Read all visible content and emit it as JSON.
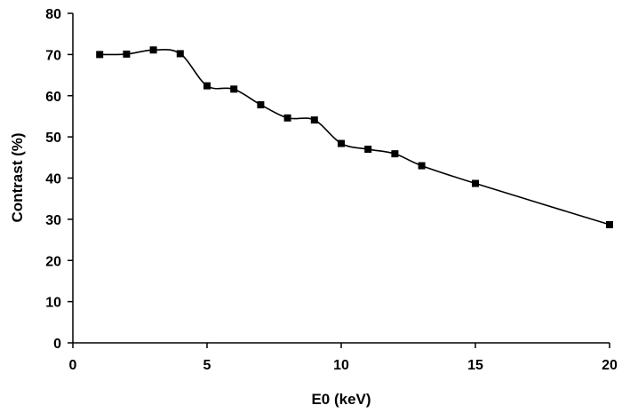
{
  "chart_data": {
    "type": "line",
    "xlabel": "E0 (keV)",
    "ylabel": "Contrast (%)",
    "xlim": [
      0,
      20
    ],
    "ylim": [
      0,
      80
    ],
    "xticks": [
      0,
      5,
      10,
      15,
      20
    ],
    "yticks": [
      0,
      10,
      20,
      30,
      40,
      50,
      60,
      70,
      80
    ],
    "grid": false,
    "series": [
      {
        "marker": "square",
        "color": "#000000",
        "x": [
          1,
          2,
          3,
          4,
          5,
          6,
          7,
          8,
          9,
          10,
          11,
          12,
          13,
          15,
          20
        ],
        "y": [
          70.0,
          70.1,
          71.1,
          70.2,
          62.4,
          61.6,
          57.8,
          54.6,
          54.1,
          48.4,
          47.0,
          45.9,
          43.0,
          38.7,
          28.7
        ]
      }
    ]
  }
}
